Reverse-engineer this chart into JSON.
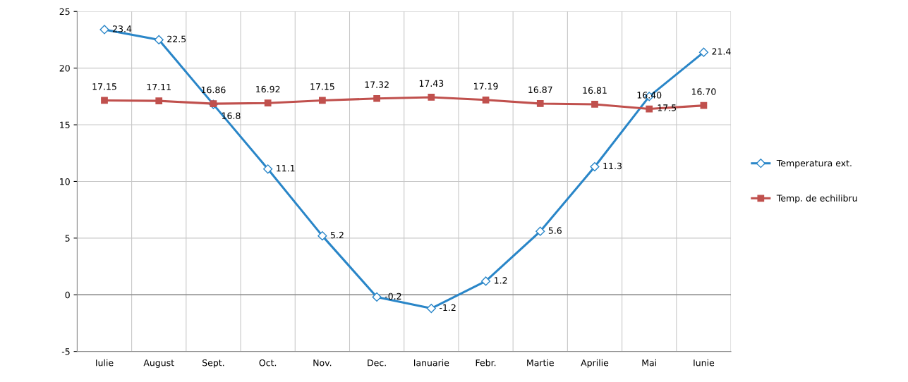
{
  "chart_data": {
    "type": "line",
    "categories": [
      "Iulie",
      "August",
      "Sept.",
      "Oct.",
      "Nov.",
      "Dec.",
      "Ianuarie",
      "Febr.",
      "Martie",
      "Aprilie",
      "Mai",
      "Iunie"
    ],
    "series": [
      {
        "name": "Temperatura ext.",
        "color": "#2a86c8",
        "marker": "diamond",
        "values": [
          23.4,
          22.5,
          16.8,
          11.1,
          5.2,
          -0.2,
          -1.2,
          1.2,
          5.6,
          11.3,
          17.5,
          21.4
        ],
        "value_labels": [
          "23.4",
          "22.5",
          "16.8",
          "11.1",
          "5.2",
          "-0.2",
          "-1.2",
          "1.2",
          "5.6",
          "11.3",
          "17.5",
          "21.4"
        ]
      },
      {
        "name": "Temp. de echilibru",
        "color": "#c0504d",
        "marker": "square",
        "values": [
          17.15,
          17.11,
          16.86,
          16.92,
          17.15,
          17.32,
          17.43,
          17.19,
          16.87,
          16.81,
          16.4,
          16.7
        ],
        "value_labels": [
          "17.15",
          "17.11",
          "16.86",
          "16.92",
          "17.15",
          "17.32",
          "17.43",
          "17.19",
          "16.87",
          "16.81",
          "16.40",
          "16.70"
        ]
      }
    ],
    "ylim": [
      -5,
      25
    ],
    "yticks": [
      -5,
      0,
      5,
      10,
      15,
      20,
      25
    ],
    "grid": true,
    "legend": "right",
    "line_style": "solid"
  }
}
